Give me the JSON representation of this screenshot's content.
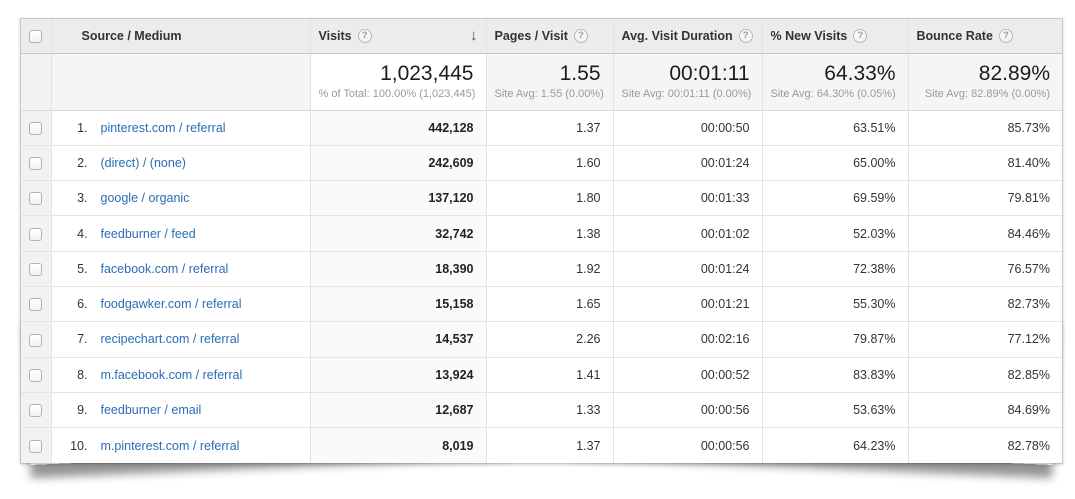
{
  "table": {
    "columns": [
      {
        "key": "source",
        "label": "Source / Medium",
        "help": false,
        "sorted": false
      },
      {
        "key": "visits",
        "label": "Visits",
        "help": true,
        "sorted": true
      },
      {
        "key": "pages",
        "label": "Pages / Visit",
        "help": true,
        "sorted": false
      },
      {
        "key": "dur",
        "label": "Avg. Visit Duration",
        "help": true,
        "sorted": false
      },
      {
        "key": "new",
        "label": "% New Visits",
        "help": true,
        "sorted": false
      },
      {
        "key": "bounce",
        "label": "Bounce Rate",
        "help": true,
        "sorted": false
      }
    ],
    "summary": {
      "visits": "1,023,445",
      "visits_sub": "% of Total: 100.00% (1,023,445)",
      "pages": "1.55",
      "pages_sub": "Site Avg: 1.55 (0.00%)",
      "dur": "00:01:11",
      "dur_sub": "Site Avg: 00:01:11 (0.00%)",
      "new": "64.33%",
      "new_sub": "Site Avg: 64.30% (0.05%)",
      "bounce": "82.89%",
      "bounce_sub": "Site Avg: 82.89% (0.00%)"
    },
    "rows": [
      {
        "rank": "1.",
        "source": "pinterest.com / referral",
        "visits": "442,128",
        "pages": "1.37",
        "dur": "00:00:50",
        "new": "63.51%",
        "bounce": "85.73%"
      },
      {
        "rank": "2.",
        "source": "(direct) / (none)",
        "visits": "242,609",
        "pages": "1.60",
        "dur": "00:01:24",
        "new": "65.00%",
        "bounce": "81.40%"
      },
      {
        "rank": "3.",
        "source": "google / organic",
        "visits": "137,120",
        "pages": "1.80",
        "dur": "00:01:33",
        "new": "69.59%",
        "bounce": "79.81%"
      },
      {
        "rank": "4.",
        "source": "feedburner / feed",
        "visits": "32,742",
        "pages": "1.38",
        "dur": "00:01:02",
        "new": "52.03%",
        "bounce": "84.46%"
      },
      {
        "rank": "5.",
        "source": "facebook.com / referral",
        "visits": "18,390",
        "pages": "1.92",
        "dur": "00:01:24",
        "new": "72.38%",
        "bounce": "76.57%"
      },
      {
        "rank": "6.",
        "source": "foodgawker.com / referral",
        "visits": "15,158",
        "pages": "1.65",
        "dur": "00:01:21",
        "new": "55.30%",
        "bounce": "82.73%"
      },
      {
        "rank": "7.",
        "source": "recipechart.com / referral",
        "visits": "14,537",
        "pages": "2.26",
        "dur": "00:02:16",
        "new": "79.87%",
        "bounce": "77.12%"
      },
      {
        "rank": "8.",
        "source": "m.facebook.com / referral",
        "visits": "13,924",
        "pages": "1.41",
        "dur": "00:00:52",
        "new": "83.83%",
        "bounce": "82.85%"
      },
      {
        "rank": "9.",
        "source": "feedburner / email",
        "visits": "12,687",
        "pages": "1.33",
        "dur": "00:00:56",
        "new": "53.63%",
        "bounce": "84.69%"
      },
      {
        "rank": "10.",
        "source": "m.pinterest.com / referral",
        "visits": "8,019",
        "pages": "1.37",
        "dur": "00:00:56",
        "new": "64.23%",
        "bounce": "82.78%"
      }
    ]
  },
  "icons": {
    "help": "?",
    "sort_descending": "↓"
  },
  "colors": {
    "header_bg": "#ececec",
    "summary_bg": "#f5f5f5",
    "sorted_col_bg": "#fafafa",
    "checkbox_col_bg": "#f2f2f2",
    "link_blue": "#2a6db5",
    "border": "#e3e3e3"
  }
}
